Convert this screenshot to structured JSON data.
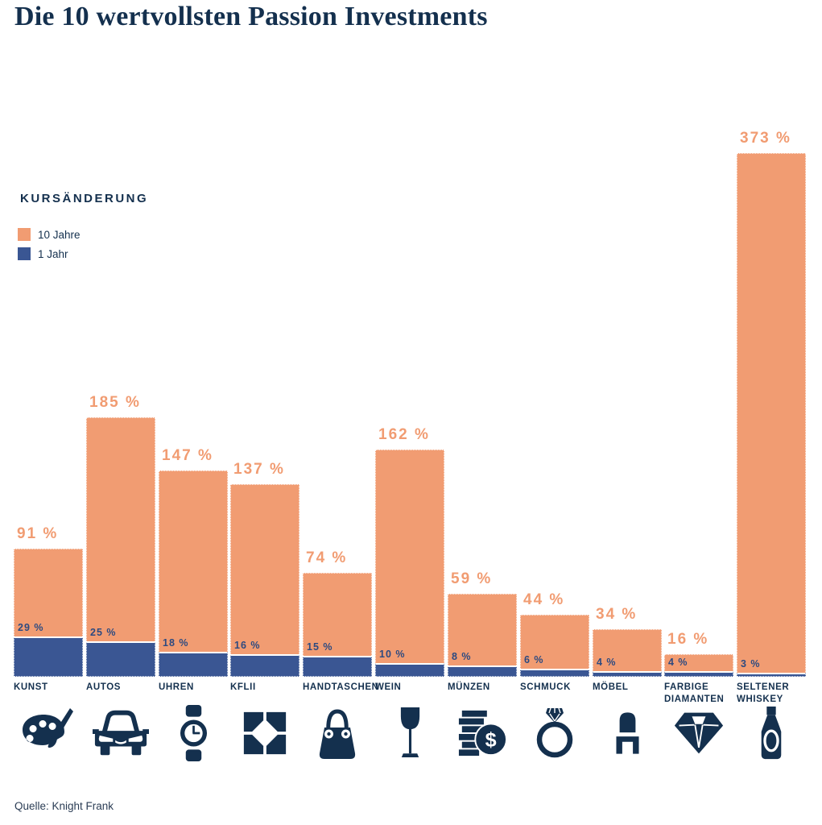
{
  "title": "Die 10 wertvollsten Passion Investments",
  "source": "Quelle: Knight Frank",
  "colors": {
    "orange": "#F19C72",
    "blue": "#3A5693",
    "navy": "#14304E",
    "blue_value_label": "#2D4A80"
  },
  "legend": {
    "title": "KURSÄNDERUNG",
    "items": [
      {
        "label": "10 Jahre",
        "color": "#F19C72"
      },
      {
        "label": "1 Jahr",
        "color": "#3A5693"
      }
    ]
  },
  "chart_data": {
    "type": "bar",
    "title": "Die 10 wertvollsten Passion Investments",
    "categories": [
      "KUNST",
      "AUTOS",
      "UHREN",
      "KFLII",
      "HANDTASCHEN",
      "WEIN",
      "MÜNZEN",
      "SCHMUCK",
      "MÖBEL",
      "FARBIGE DIAMANTEN",
      "SELTENER WHISKEY"
    ],
    "icons": [
      "palette-icon",
      "car-icon",
      "watch-icon",
      "kflii-pattern-icon",
      "handbag-icon",
      "wine-glass-icon",
      "coins-icon",
      "ring-icon",
      "chair-icon",
      "diamond-icon",
      "whiskey-bottle-icon"
    ],
    "series": [
      {
        "name": "10 Jahre",
        "values": [
          91,
          185,
          147,
          137,
          74,
          162,
          59,
          44,
          34,
          16,
          373
        ]
      },
      {
        "name": "1 Jahr",
        "values": [
          29,
          25,
          18,
          16,
          15,
          10,
          8,
          6,
          4,
          4,
          3
        ]
      }
    ],
    "unit": "%",
    "ylim": [
      0,
      373
    ],
    "grid": false,
    "legend_position": "upper-left",
    "value_label_format": "{v} %"
  }
}
